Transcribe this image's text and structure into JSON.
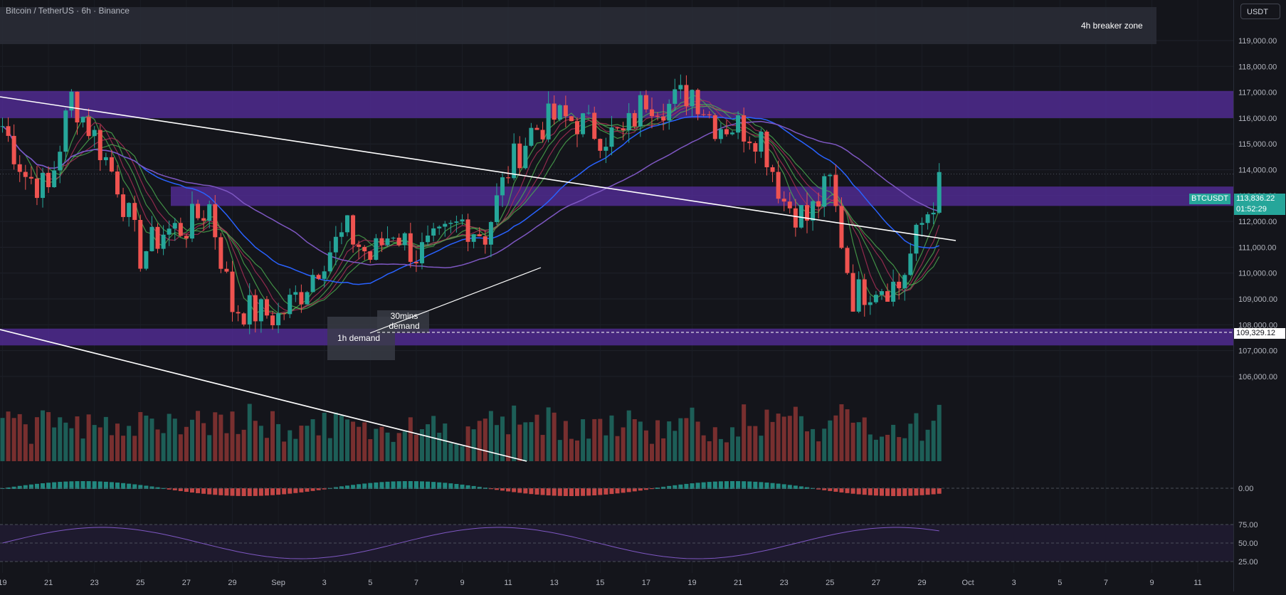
{
  "header": {
    "title": "Bitcoin / TetherUS · 6h · Binance",
    "currency": "USDT"
  },
  "zones": {
    "breaker_label": "4h breaker zone",
    "demand_1h_label": "1h demand",
    "demand_30m_label": "30mins demand"
  },
  "price_tags": {
    "symbol": "BTCUSDT",
    "last_price": "113,836.22",
    "countdown": "01:52:29",
    "level_price": "109,329.12"
  },
  "colors": {
    "bull": "#26a69a",
    "bear": "#ef5350",
    "background": "#14151b",
    "zone": "#5b2fa8",
    "ma_blue": "#2962ff",
    "ma_purple": "#7e57c2"
  },
  "chart_data": {
    "type": "candlestick",
    "symbol": "BTCUSDT",
    "interval": "6h",
    "ylim": [
      105000,
      120000
    ],
    "y_ticks": [
      "119,000.00",
      "118,000.00",
      "117,000.00",
      "116,000.00",
      "115,000.00",
      "114,000.00",
      "113,000.00",
      "112,000.00",
      "111,000.00",
      "110,000.00",
      "109,000.00",
      "108,000.00",
      "107,000.00",
      "106,000.00"
    ],
    "x_ticks": [
      "19",
      "21",
      "23",
      "25",
      "27",
      "29",
      "Sep",
      "3",
      "5",
      "7",
      "9",
      "11",
      "13",
      "15",
      "17",
      "19",
      "21",
      "23",
      "25",
      "27",
      "29",
      "Oct",
      "3",
      "5",
      "7",
      "9",
      "11"
    ],
    "close_path": [
      {
        "date": "2025-08-19",
        "close": 115700
      },
      {
        "date": "2025-08-20",
        "close": 113800
      },
      {
        "date": "2025-08-21",
        "close": 113200
      },
      {
        "date": "2025-08-22",
        "close": 116800
      },
      {
        "date": "2025-08-23",
        "close": 115300
      },
      {
        "date": "2025-08-24",
        "close": 113500
      },
      {
        "date": "2025-08-25",
        "close": 110700
      },
      {
        "date": "2025-08-26",
        "close": 111600
      },
      {
        "date": "2025-08-27",
        "close": 111800
      },
      {
        "date": "2025-08-28",
        "close": 112600
      },
      {
        "date": "2025-08-29",
        "close": 108700
      },
      {
        "date": "2025-08-30",
        "close": 108500
      },
      {
        "date": "2025-08-31",
        "close": 108300
      },
      {
        "date": "2025-09-01",
        "close": 109300
      },
      {
        "date": "2025-09-02",
        "close": 110700
      },
      {
        "date": "2025-09-03",
        "close": 111600
      },
      {
        "date": "2025-09-04",
        "close": 110600
      },
      {
        "date": "2025-09-05",
        "close": 111700
      },
      {
        "date": "2025-09-06",
        "close": 110700
      },
      {
        "date": "2025-09-07",
        "close": 111200
      },
      {
        "date": "2025-09-08",
        "close": 112000
      },
      {
        "date": "2025-09-09",
        "close": 111500
      },
      {
        "date": "2025-09-10",
        "close": 114000
      },
      {
        "date": "2025-09-11",
        "close": 115500
      },
      {
        "date": "2025-09-12",
        "close": 116000
      },
      {
        "date": "2025-09-13",
        "close": 115900
      },
      {
        "date": "2025-09-14",
        "close": 115400
      },
      {
        "date": "2025-09-15",
        "close": 115300
      },
      {
        "date": "2025-09-16",
        "close": 116800
      },
      {
        "date": "2025-09-17",
        "close": 116500
      },
      {
        "date": "2025-09-18",
        "close": 117100
      },
      {
        "date": "2025-09-19",
        "close": 115800
      },
      {
        "date": "2025-09-20",
        "close": 115700
      },
      {
        "date": "2025-09-21",
        "close": 115300
      },
      {
        "date": "2025-09-22",
        "close": 112800
      },
      {
        "date": "2025-09-23",
        "close": 112100
      },
      {
        "date": "2025-09-24",
        "close": 113500
      },
      {
        "date": "2025-09-25",
        "close": 109100
      },
      {
        "date": "2025-09-26",
        "close": 109600
      },
      {
        "date": "2025-09-27",
        "close": 109500
      },
      {
        "date": "2025-09-28",
        "close": 111900
      },
      {
        "date": "2025-09-29",
        "close": 113836
      }
    ],
    "macd_zero_label": "0.00",
    "rsi_ticks": [
      "75.00",
      "50.00",
      "25.00"
    ]
  }
}
